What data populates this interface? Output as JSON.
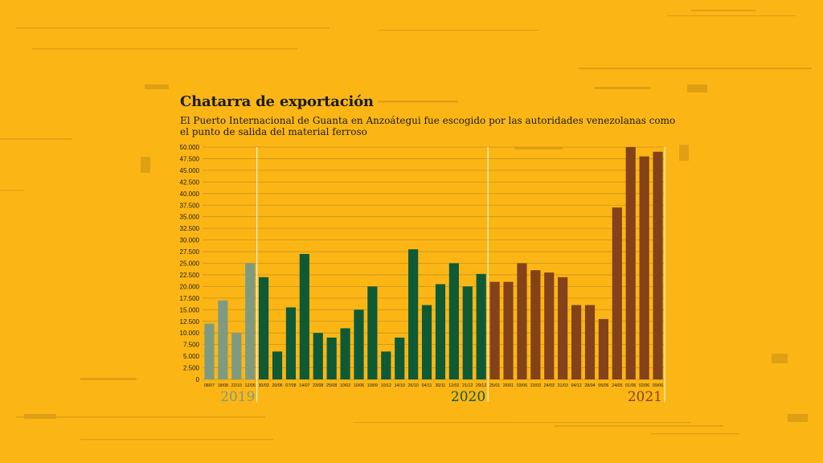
{
  "title": "Chatarra de exportación",
  "subtitle": "El Puerto Internacional de Guanta en Anzoátegui fue escogido por las autoridades venezolanas como el punto de salida del material ferroso",
  "colors": {
    "background": "#FBB616",
    "series_2019": "#7E9B82",
    "series_2020": "#0E5A37",
    "series_2021": "#84421A",
    "gridline": "#C7921A",
    "divider": "#FFFFFF"
  },
  "chart_data": {
    "type": "bar",
    "title": "Chatarra de exportación",
    "xlabel": "",
    "ylabel": "",
    "ylim": [
      0,
      50000
    ],
    "y_ticks": [
      "0",
      "2.500",
      "5.000",
      "7.500",
      "10.000",
      "12.500",
      "15.000",
      "17.500",
      "20.000",
      "22.500",
      "25.000",
      "27.500",
      "30.000",
      "32.500",
      "35.000",
      "37.500",
      "40.000",
      "42.500",
      "45.000",
      "47.500",
      "50.000"
    ],
    "grid": true,
    "legend": "none",
    "series": [
      {
        "year": "2019",
        "categories": [
          "08/07",
          "18/08",
          "22/10",
          "12/05"
        ],
        "values": [
          12000,
          17000,
          10000,
          25000
        ]
      },
      {
        "year": "2020",
        "categories": [
          "30/03",
          "20/06",
          "07/08",
          "14/07",
          "23/08",
          "25/08",
          "10/02",
          "10/06",
          "10/09",
          "10/12",
          "14/10",
          "26/10",
          "04/11",
          "30/11",
          "12/02",
          "21/12",
          "29/12"
        ],
        "values": [
          22000,
          6000,
          15500,
          27000,
          10000,
          9000,
          11000,
          15000,
          20000,
          6000,
          9000,
          28000,
          16000,
          20500,
          25000,
          20000,
          22700
        ]
      },
      {
        "year": "2021",
        "categories": [
          "25/01",
          "26/01",
          "03/06",
          "23/03",
          "24/03",
          "31/03",
          "04/12",
          "28/04",
          "05/06",
          "24/05",
          "01/06",
          "02/06",
          "09/06"
        ],
        "values": [
          21000,
          21000,
          25000,
          23500,
          23000,
          22000,
          16000,
          16000,
          13000,
          37000,
          50000,
          48000,
          49000
        ]
      }
    ]
  }
}
